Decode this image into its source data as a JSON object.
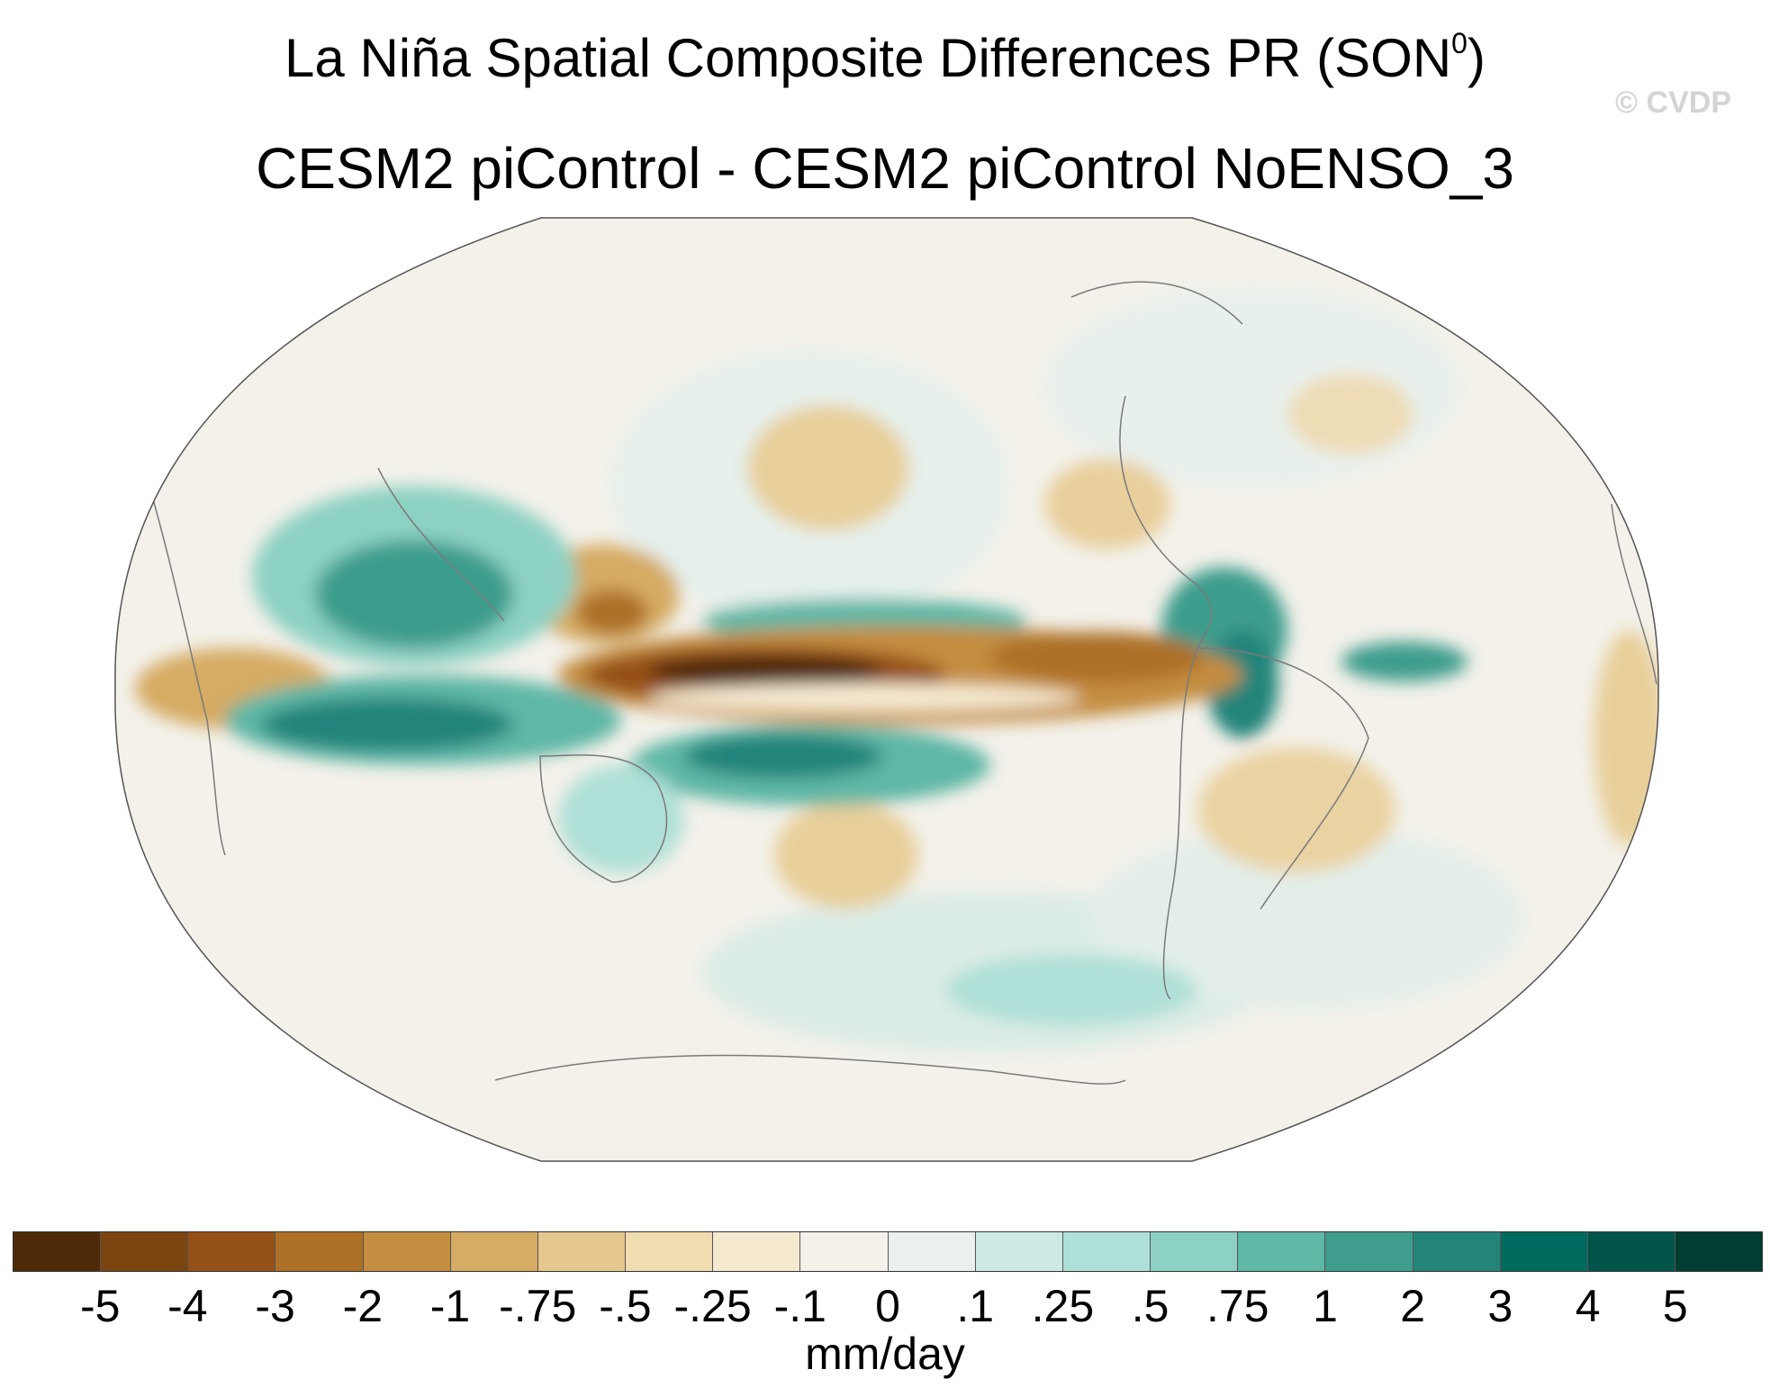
{
  "title": {
    "line1": "La Niña Spatial Composite Differences PR (SON",
    "superscript": "0",
    "line1_close": ")",
    "line2": "CESM2 piControl - CESM2 piControl NoENSO_3"
  },
  "watermark": "© CVDP",
  "map": {
    "projection": "Robinson",
    "variable": "precipitation difference",
    "features": [
      {
        "name": "central-equatorial-pacific-dry-band",
        "sign": "negative",
        "peak_value": -5
      },
      {
        "name": "western-pacific-dry-patch",
        "sign": "negative",
        "peak_value": -2
      },
      {
        "name": "indian-ocean-south-wet-band",
        "sign": "positive",
        "peak_value": 3
      },
      {
        "name": "maritime-continent-wet",
        "sign": "positive",
        "peak_value": 2
      },
      {
        "name": "south-pacific-wet-band",
        "sign": "positive",
        "peak_value": 2
      },
      {
        "name": "north-pacific-wet-band",
        "sign": "positive",
        "peak_value": 2
      },
      {
        "name": "central-america-wet",
        "sign": "positive",
        "peak_value": 3
      },
      {
        "name": "tropical-atlantic-wet",
        "sign": "positive",
        "peak_value": 2
      },
      {
        "name": "east-africa-dry",
        "sign": "negative",
        "peak_value": -1
      },
      {
        "name": "australia-wet",
        "sign": "positive",
        "peak_value": 1
      }
    ]
  },
  "colorbar": {
    "colors": [
      "#4f2a08",
      "#7b4410",
      "#955018",
      "#ad7026",
      "#c48d40",
      "#d6ab63",
      "#e6c78d",
      "#efdcb0",
      "#f5ead0",
      "#f4f1eb",
      "#e9f0ee",
      "#cceae3",
      "#afe0d7",
      "#8dd1c3",
      "#5fb7a6",
      "#3e9d8d",
      "#23847a",
      "#006a5f",
      "#01544a",
      "#023d31"
    ],
    "labels": [
      "-5",
      "-4",
      "-3",
      "-2",
      "-1",
      "-.75",
      "-.5",
      "-.25",
      "-.1",
      "0",
      ".1",
      ".25",
      ".5",
      ".75",
      "1",
      "2",
      "3",
      "4",
      "5"
    ],
    "units": "mm/day"
  }
}
